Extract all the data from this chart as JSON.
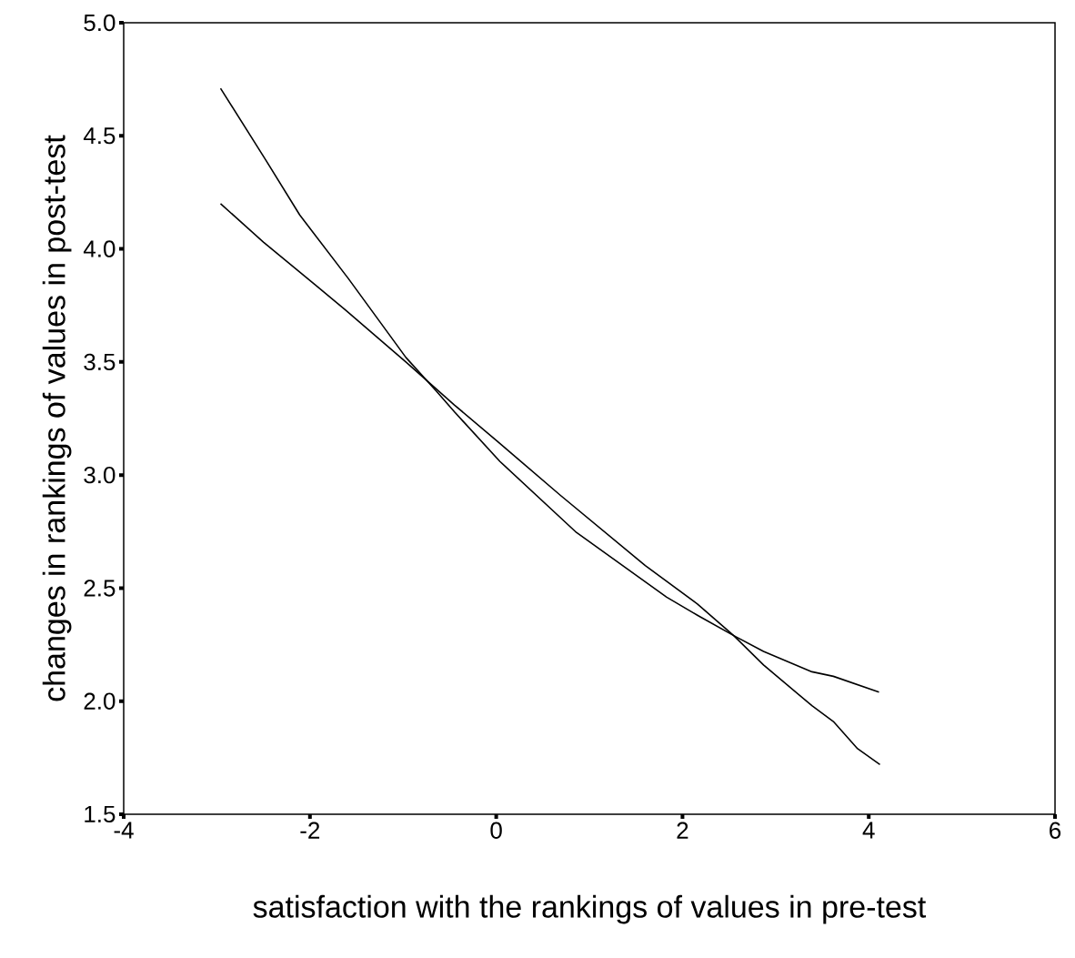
{
  "chart_data": {
    "type": "line",
    "xlabel": "satisfaction with the rankings of values in pre-test",
    "ylabel": "changes in rankings of values in post-test",
    "xlim": [
      -4,
      6
    ],
    "ylim": [
      1.5,
      5.0
    ],
    "xticks": [
      -4,
      -2,
      0,
      2,
      4,
      6
    ],
    "yticks": [
      {
        "value": 1.5,
        "label": "1.5"
      },
      {
        "value": 2.0,
        "label": "2.0"
      },
      {
        "value": 2.5,
        "label": "2.5"
      },
      {
        "value": 3.0,
        "label": "3.0"
      },
      {
        "value": 3.5,
        "label": "3.5"
      },
      {
        "value": 4.0,
        "label": "4.0"
      },
      {
        "value": 4.5,
        "label": "4.5"
      },
      {
        "value": 5.0,
        "label": "5.0"
      }
    ],
    "series": [
      {
        "color": "#000000",
        "x": [
          -2.96,
          -2.47,
          -2.11,
          -1.59,
          -0.97,
          -0.64,
          -0.45,
          0.04,
          0.85,
          1.83,
          2.16,
          2.55,
          2.87,
          3.39,
          3.62,
          3.88,
          4.12
        ],
        "values": [
          4.71,
          4.39,
          4.15,
          3.87,
          3.52,
          3.37,
          3.28,
          3.06,
          2.75,
          2.46,
          2.38,
          2.29,
          2.16,
          1.98,
          1.91,
          1.79,
          1.72
        ]
      },
      {
        "color": "#000000",
        "x": [
          -2.96,
          -2.5,
          -1.94,
          -1.62,
          -0.97,
          -0.45,
          0.01,
          0.69,
          1.6,
          2.16,
          2.55,
          2.87,
          3.39,
          3.62,
          4.11
        ],
        "values": [
          4.2,
          4.03,
          3.84,
          3.73,
          3.5,
          3.31,
          3.15,
          2.91,
          2.6,
          2.43,
          2.29,
          2.22,
          2.13,
          2.11,
          2.04
        ]
      }
    ]
  }
}
